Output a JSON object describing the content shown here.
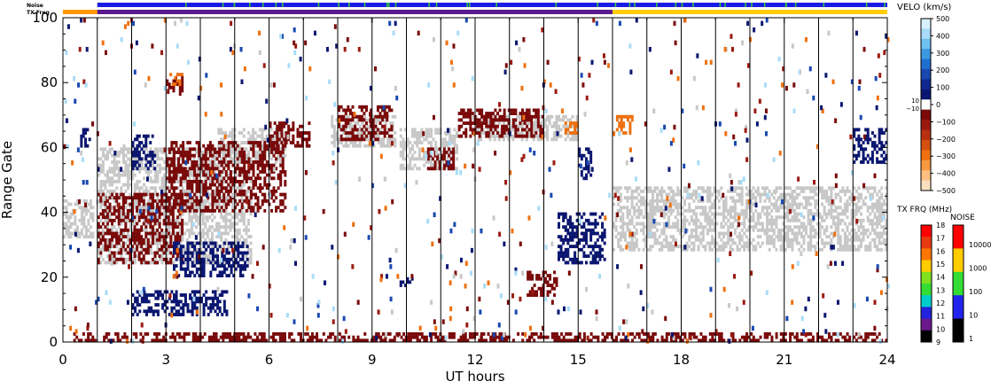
{
  "chart_data": {
    "type": "heatmap",
    "xlabel": "UT hours",
    "ylabel": "Range Gate",
    "xlim": [
      0,
      24
    ],
    "ylim": [
      0,
      100
    ],
    "x_ticks": [
      0,
      3,
      6,
      9,
      12,
      15,
      18,
      21,
      24
    ],
    "y_ticks": [
      0,
      20,
      40,
      60,
      80,
      100
    ],
    "scan_boundaries_hours": [
      1,
      2,
      3,
      4,
      5,
      6,
      7,
      8,
      9,
      10,
      11,
      12,
      13,
      14,
      15,
      16,
      17,
      18,
      19,
      20,
      21,
      22,
      23
    ],
    "top_strips": [
      {
        "label": "Noise",
        "segments": [
          {
            "x0": 1,
            "x1": 24,
            "color": "#1a1ae6"
          }
        ],
        "markers_color": "#33cc33"
      },
      {
        "label": "TX Freq",
        "segments": [
          {
            "x0": 0,
            "x1": 1,
            "color": "#ff9900"
          },
          {
            "x0": 1,
            "x1": 16,
            "color": "#5a1a8c"
          },
          {
            "x0": 16,
            "x1": 24,
            "color": "#ffcc00"
          }
        ]
      }
    ],
    "ground_scatter_color": "#c8c8c8",
    "velocity_colorbar": {
      "title": "VELO (km/s)",
      "ticks": [
        "500",
        "400",
        "300",
        "200",
        "100",
        "0",
        "−100",
        "−200",
        "−300",
        "−400",
        "−500"
      ],
      "threshold_labels": [
        "10",
        "−10"
      ],
      "colors_top_to_bottom": [
        "#d8f0ff",
        "#a8dcf8",
        "#6ec0f0",
        "#3c98e0",
        "#1f6fd0",
        "#1848b0",
        "#102890",
        "#0a1670",
        "#ffffff",
        "#7a0a0a",
        "#9a1a10",
        "#b83010",
        "#d45010",
        "#ee7010",
        "#f89840",
        "#fcc080",
        "#fde0c0"
      ]
    },
    "txfrq_colorbar": {
      "title": "TX FRQ (MHz)",
      "ticks": [
        "18",
        "17",
        "16",
        "15",
        "14",
        "13",
        "12",
        "11",
        "10",
        "9"
      ],
      "colors_top_to_bottom": [
        "#ff0000",
        "#e83a10",
        "#ff7700",
        "#ffcc00",
        "#80e020",
        "#33dd33",
        "#00cccc",
        "#2222dd",
        "#6a1a8c",
        "#000000"
      ]
    },
    "noise_colorbar": {
      "title": "NOISE",
      "ticks": [
        "10000",
        "1000",
        "100",
        "10",
        "1"
      ],
      "colors_top_to_bottom": [
        "#ff0000",
        "#ffcc00",
        "#33dd33",
        "#2222ee",
        "#000000"
      ]
    },
    "series": [
      {
        "name": "ground scatter",
        "color": "#c8c8c8",
        "regions": [
          {
            "x": [
              0.0,
              0.9
            ],
            "gate": [
              32,
              44
            ]
          },
          {
            "x": [
              1.0,
              5.5
            ],
            "gate": [
              24,
              60
            ]
          },
          {
            "x": [
              4.5,
              6.5
            ],
            "gate": [
              55,
              66
            ]
          },
          {
            "x": [
              7.8,
              9.7
            ],
            "gate": [
              60,
              70
            ]
          },
          {
            "x": [
              9.8,
              11.5
            ],
            "gate": [
              53,
              66
            ]
          },
          {
            "x": [
              12.0,
              15.0
            ],
            "gate": [
              62,
              70
            ]
          },
          {
            "x": [
              16.0,
              24.0
            ],
            "gate": [
              28,
              48
            ]
          }
        ]
      },
      {
        "name": "negative velocity",
        "color": "#7a0a0a",
        "regions": [
          {
            "x": [
              0.3,
              24.0
            ],
            "gate": [
              0,
              3
            ]
          },
          {
            "x": [
              1.0,
              3.5
            ],
            "gate": [
              24,
              46
            ]
          },
          {
            "x": [
              3.0,
              6.5
            ],
            "gate": [
              40,
              62
            ]
          },
          {
            "x": [
              6.0,
              7.2
            ],
            "gate": [
              60,
              68
            ]
          },
          {
            "x": [
              8.0,
              9.6
            ],
            "gate": [
              62,
              73
            ]
          },
          {
            "x": [
              10.6,
              11.4
            ],
            "gate": [
              53,
              60
            ]
          },
          {
            "x": [
              11.5,
              14.0
            ],
            "gate": [
              63,
              72
            ]
          },
          {
            "x": [
              13.5,
              14.4
            ],
            "gate": [
              14,
              22
            ]
          },
          {
            "x": [
              3.0,
              3.5
            ],
            "gate": [
              76,
              82
            ]
          }
        ]
      },
      {
        "name": "positive velocity",
        "color": "#0a1670",
        "regions": [
          {
            "x": [
              2.0,
              2.7
            ],
            "gate": [
              53,
              64
            ]
          },
          {
            "x": [
              3.2,
              5.4
            ],
            "gate": [
              20,
              31
            ]
          },
          {
            "x": [
              2.0,
              4.8
            ],
            "gate": [
              8,
              16
            ]
          },
          {
            "x": [
              9.8,
              10.2
            ],
            "gate": [
              17,
              21
            ]
          },
          {
            "x": [
              14.4,
              15.8
            ],
            "gate": [
              24,
              40
            ]
          },
          {
            "x": [
              15.0,
              15.4
            ],
            "gate": [
              50,
              60
            ]
          },
          {
            "x": [
              23.0,
              24.0
            ],
            "gate": [
              55,
              66
            ]
          },
          {
            "x": [
              0.5,
              0.8
            ],
            "gate": [
              60,
              66
            ]
          }
        ]
      },
      {
        "name": "strong negative velocity",
        "color": "#ee7010",
        "regions": [
          {
            "x": [
              14.6,
              15.0
            ],
            "gate": [
              64,
              68
            ]
          },
          {
            "x": [
              16.1,
              16.6
            ],
            "gate": [
              64,
              70
            ]
          },
          {
            "x": [
              3.1,
              3.5
            ],
            "gate": [
              79,
              83
            ]
          }
        ]
      }
    ]
  }
}
